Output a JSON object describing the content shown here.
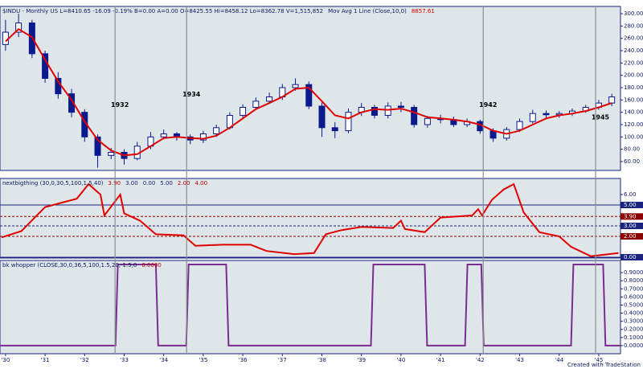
{
  "chart_data": [
    {
      "type": "candlestick",
      "title": "$INDU - Monthly  US  L=8410.65  -16.09  -0.19%  B=0.00  A=0.00  O=8425.55  Hi=8458.12  Lo=8362.78  V=1,515,852",
      "last_value": "8857.61",
      "last_value_color": "#e00000",
      "x": [
        1930.0,
        1930.33,
        1930.67,
        1931.0,
        1931.33,
        1931.67,
        1932.0,
        1932.33,
        1932.67,
        1933.0,
        1933.33,
        1933.67,
        1934.0,
        1934.33,
        1934.67,
        1935.0,
        1935.33,
        1935.67,
        1936.0,
        1936.33,
        1936.67,
        1937.0,
        1937.33,
        1937.67,
        1938.0,
        1938.33,
        1938.67,
        1939.0,
        1939.33,
        1939.67,
        1940.0,
        1940.33,
        1940.67,
        1941.0,
        1941.33,
        1941.67,
        1942.0,
        1942.33,
        1942.67,
        1943.0,
        1943.33,
        1943.67,
        1944.0,
        1944.33,
        1944.67,
        1945.0,
        1945.33
      ],
      "open": [
        250,
        270,
        285,
        235,
        195,
        170,
        140,
        100,
        70,
        75,
        65,
        85,
        100,
        105,
        100,
        95,
        105,
        115,
        135,
        148,
        158,
        165,
        180,
        185,
        150,
        115,
        110,
        140,
        148,
        135,
        150,
        148,
        120,
        130,
        128,
        120,
        125,
        110,
        98,
        112,
        125,
        138,
        136,
        138,
        142,
        148,
        155
      ],
      "high": [
        290,
        300,
        290,
        240,
        205,
        178,
        145,
        104,
        82,
        80,
        92,
        108,
        112,
        108,
        104,
        110,
        120,
        140,
        153,
        164,
        172,
        186,
        195,
        190,
        156,
        124,
        146,
        155,
        152,
        156,
        157,
        152,
        134,
        136,
        133,
        130,
        128,
        114,
        116,
        130,
        144,
        143,
        142,
        146,
        152,
        160,
        170
      ],
      "low": [
        240,
        262,
        228,
        188,
        162,
        132,
        92,
        50,
        64,
        55,
        62,
        80,
        96,
        94,
        88,
        90,
        100,
        112,
        130,
        144,
        154,
        160,
        175,
        145,
        100,
        98,
        106,
        134,
        130,
        130,
        140,
        115,
        115,
        122,
        116,
        116,
        105,
        92,
        94,
        108,
        122,
        130,
        131,
        134,
        139,
        144,
        150
      ],
      "close": [
        270,
        285,
        235,
        195,
        170,
        140,
        100,
        70,
        75,
        65,
        85,
        100,
        105,
        100,
        95,
        105,
        115,
        135,
        148,
        158,
        165,
        180,
        185,
        150,
        115,
        110,
        140,
        148,
        135,
        150,
        148,
        120,
        130,
        128,
        120,
        125,
        110,
        98,
        112,
        125,
        138,
        136,
        138,
        142,
        148,
        155,
        165
      ],
      "up_color": "#ffffff",
      "down_color": "#0a1a8c",
      "edge_color": "#0a1a8c",
      "series": [
        {
          "name": "Mov Avg 1 Line (Close,10,0)",
          "color": "#e00000",
          "values": [
            255,
            275,
            262,
            225,
            190,
            160,
            125,
            95,
            78,
            70,
            72,
            85,
            98,
            100,
            98,
            97,
            102,
            115,
            130,
            145,
            155,
            165,
            178,
            180,
            158,
            135,
            130,
            140,
            145,
            144,
            146,
            140,
            132,
            130,
            128,
            125,
            120,
            110,
            105,
            110,
            120,
            130,
            135,
            138,
            142,
            148,
            155
          ]
        }
      ],
      "annotations": [
        {
          "text": "1932",
          "x": 1932.77,
          "y": 152
        },
        {
          "text": "1934",
          "x": 1934.58,
          "y": 169
        },
        {
          "text": "1942",
          "x": 1942.08,
          "y": 152
        },
        {
          "text": "1945",
          "x": 1944.92,
          "y": 132
        }
      ],
      "xlim": [
        1929.86,
        1945.55
      ],
      "ylim": [
        45.6,
        311.8
      ],
      "yticks": [
        {
          "value": 60,
          "label": "60.00"
        },
        {
          "value": 80,
          "label": "80.00"
        },
        {
          "value": 100,
          "label": "100.00"
        },
        {
          "value": 120,
          "label": "120.00"
        },
        {
          "value": 140,
          "label": "140.00"
        },
        {
          "value": 160,
          "label": "160.00"
        },
        {
          "value": 180,
          "label": "180.00"
        },
        {
          "value": 200,
          "label": "200.00"
        },
        {
          "value": 220,
          "label": "220.00"
        },
        {
          "value": 240,
          "label": "240.00"
        },
        {
          "value": 260,
          "label": "260.00"
        },
        {
          "value": 280,
          "label": "280.00"
        },
        {
          "value": 300,
          "label": "300.00"
        }
      ]
    },
    {
      "type": "line",
      "title": "nextbigthing (30,0,30,5,100,1.5,40)",
      "plot_values": [
        {
          "label": "3.90",
          "color": "#c00000"
        },
        {
          "label": "3.00",
          "color": "#1a237e"
        },
        {
          "label": "0.00",
          "color": "#1a237e"
        },
        {
          "label": "5.00",
          "color": "#1a237e"
        },
        {
          "label": "2.00",
          "color": "#c00000"
        },
        {
          "label": "4.00",
          "color": "#c00000"
        }
      ],
      "series": [
        {
          "color": "#e00000",
          "x": [
            1929.9,
            1930.4,
            1931.0,
            1931.4,
            1931.8,
            1932.1,
            1932.4,
            1932.5,
            1932.9,
            1933.0,
            1933.4,
            1933.8,
            1934.5,
            1934.8,
            1935.5,
            1936.2,
            1936.6,
            1937.3,
            1937.8,
            1938.1,
            1938.5,
            1939.0,
            1939.8,
            1940.0,
            1940.1,
            1940.6,
            1941.0,
            1941.8,
            1941.95,
            1942.05,
            1942.3,
            1942.6,
            1942.85,
            1943.1,
            1943.5,
            1944.0,
            1944.3,
            1944.8,
            1945.5
          ],
          "values": [
            1.9,
            2.5,
            4.8,
            5.2,
            5.6,
            7.0,
            6.0,
            4.0,
            6.0,
            4.2,
            3.5,
            2.2,
            2.1,
            1.1,
            1.2,
            1.2,
            0.6,
            0.3,
            0.4,
            2.2,
            2.6,
            2.9,
            2.8,
            3.5,
            2.7,
            2.4,
            3.8,
            4.0,
            4.6,
            4.0,
            5.5,
            6.5,
            7.0,
            4.3,
            2.4,
            2.0,
            1.0,
            0.1,
            0.4
          ]
        }
      ],
      "levels": [
        {
          "value": 5,
          "label": "5.00",
          "color": "#1a237e",
          "style": "solid"
        },
        {
          "value": 3.9,
          "label": "3.90",
          "color": "#8b0000",
          "style": "dashed"
        },
        {
          "value": 3,
          "label": "3.00",
          "color": "#1a237e",
          "style": "dashed"
        },
        {
          "value": 2,
          "label": "2.00",
          "color": "#8b0000",
          "style": "dashed"
        },
        {
          "value": 0,
          "label": "0.00",
          "color": "#1a237e",
          "style": "solid"
        }
      ],
      "xlim": [
        1929.86,
        1945.55
      ],
      "ylim": [
        -0.08,
        7.54
      ],
      "yticks": [
        {
          "value": 6,
          "label": "6.00"
        }
      ]
    },
    {
      "type": "line",
      "title": "bk whopper (CLOSE,30,0,36,5,100,1.5,20,-1.5,0",
      "plot_values": [
        {
          "label": "0.0000",
          "color": "#c00000"
        }
      ],
      "series": [
        {
          "color": "#7b2c8f",
          "x": [
            1929.86,
            1932.78,
            1932.84,
            1933.8,
            1933.86,
            1934.57,
            1934.63,
            1935.58,
            1935.64,
            1939.24,
            1939.3,
            1940.6,
            1940.66,
            1941.62,
            1941.68,
            1942.03,
            1942.09,
            1944.3,
            1944.36,
            1945.11,
            1945.17,
            1945.55
          ],
          "values": [
            0,
            0,
            1,
            1,
            0,
            0,
            1,
            1,
            0,
            0,
            1,
            1,
            0,
            0,
            1,
            1,
            0,
            0,
            1,
            1,
            0,
            0
          ]
        }
      ],
      "xlim": [
        1929.86,
        1945.55
      ],
      "ylim": [
        -0.1,
        1.05
      ],
      "yticks": [
        {
          "value": 0,
          "label": "0.0000"
        },
        {
          "value": 0.1,
          "label": "0.1000"
        },
        {
          "value": 0.2,
          "label": "0.2000"
        },
        {
          "value": 0.3,
          "label": "0.3000"
        },
        {
          "value": 0.4,
          "label": "0.4000"
        },
        {
          "value": 0.5,
          "label": "0.5000"
        },
        {
          "value": 0.6,
          "label": "0.6000"
        },
        {
          "value": 0.7,
          "label": "0.7000"
        },
        {
          "value": 0.8,
          "label": "0.8000"
        },
        {
          "value": 0.9,
          "label": "0.9000"
        }
      ],
      "xticks": [
        {
          "value": 1930,
          "label": "'30"
        },
        {
          "value": 1931,
          "label": "'31"
        },
        {
          "value": 1932,
          "label": "'32"
        },
        {
          "value": 1933,
          "label": "'33"
        },
        {
          "value": 1934,
          "label": "'34"
        },
        {
          "value": 1935,
          "label": "'35"
        },
        {
          "value": 1936,
          "label": "'36"
        },
        {
          "value": 1937,
          "label": "'37"
        },
        {
          "value": 1938,
          "label": "'38"
        },
        {
          "value": 1939,
          "label": "'39"
        },
        {
          "value": 1940,
          "label": "'40"
        },
        {
          "value": 1941,
          "label": "'41"
        },
        {
          "value": 1942,
          "label": "'42"
        },
        {
          "value": 1943,
          "label": "'43"
        },
        {
          "value": 1944,
          "label": "'44"
        },
        {
          "value": 1945,
          "label": "'45"
        }
      ]
    }
  ],
  "footer": "Created with TradeStation"
}
